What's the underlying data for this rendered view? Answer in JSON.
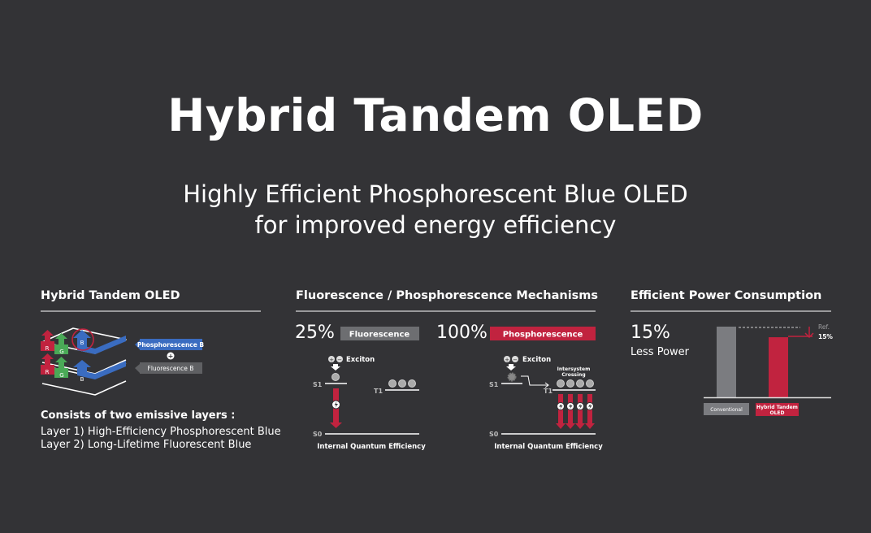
{
  "title": "Hybrid Tandem OLED",
  "subtitle": [
    "Highly Efficient Phosphorescent Blue OLED",
    "for improved energy efficiency"
  ],
  "colors": {
    "background": "#333336",
    "red": "#c1233f",
    "gray": "#6d6e71",
    "blue": "#3a6cc0",
    "green": "#4aa957"
  },
  "left": {
    "heading": "Hybrid Tandem OLED",
    "layer_letters": [
      "R",
      "G",
      "B"
    ],
    "label_phos": "Phosphorescence B",
    "plus": "+",
    "label_fluor": "Fluorescence B",
    "desc_title": "Consists of two emissive layers :",
    "desc_lines": [
      "Layer 1) High-Efficiency Phosphorescent Blue",
      "Layer 2) Long-Lifetime Fluorescent Blue"
    ]
  },
  "middle": {
    "heading": "Fluorescence / Phosphorescence Mechanisms",
    "fluor": {
      "percent": "25%",
      "label": "Fluorescence",
      "exciton": "Exciton",
      "s1": "S1",
      "t1": "T1",
      "s0": "S0",
      "caption": "Internal Quantum Efficiency"
    },
    "phos": {
      "percent": "100%",
      "label": "Phosphorescence",
      "exciton": "Exciton",
      "crossing": [
        "Intersystem",
        "Crossing"
      ],
      "s1": "S1",
      "t1": "T1",
      "s0": "S0",
      "caption": "Internal Quantum Efficiency"
    }
  },
  "right": {
    "heading": "Efficient Power Consumption",
    "percent": "15%",
    "less_power": "Less Power",
    "ref": "Ref.",
    "ref_value": "15%",
    "bars": [
      {
        "label": "Conventional",
        "relative_value": 100,
        "color": "#7b7c80"
      },
      {
        "label": "Hybrid Tandem OLED",
        "label_lines": [
          "Hybrid Tandem",
          "OLED"
        ],
        "relative_value": 85,
        "color": "#c1233f"
      }
    ]
  }
}
